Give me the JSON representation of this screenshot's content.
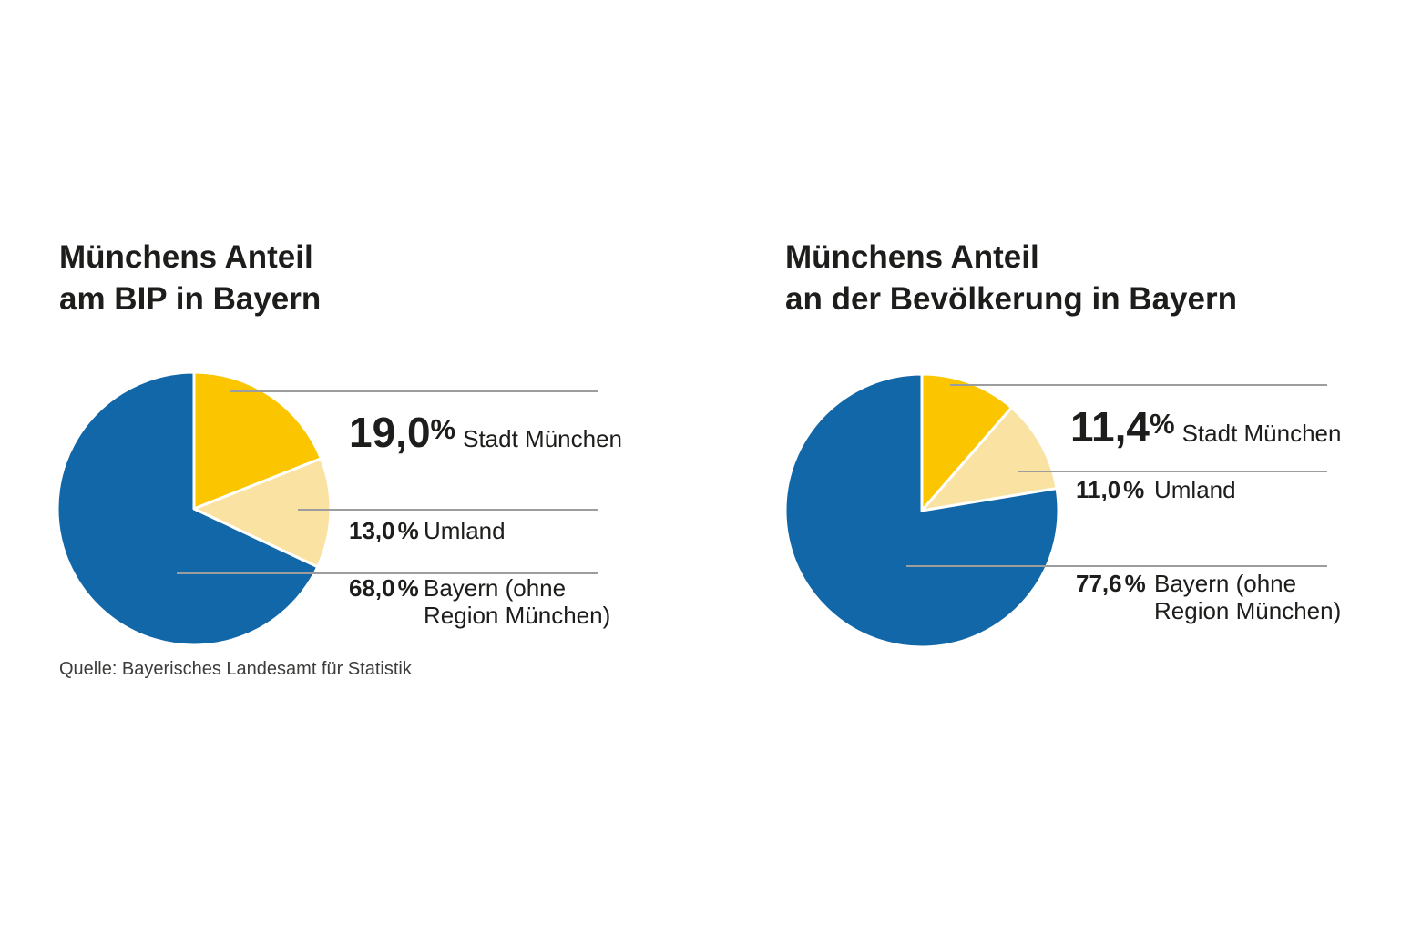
{
  "colors": {
    "stadt_muenchen": "#fbc500",
    "umland": "#fae2a2",
    "bayern": "#1167a8",
    "callout_line": "#9d9d9d",
    "text": "#1d1d1b"
  },
  "source_note": "Quelle: Bayerisches Landesamt für Statistik",
  "chart_data": [
    {
      "type": "pie",
      "title": "Münchens Anteil am BIP in Bayern",
      "title_lines": [
        "Münchens Anteil",
        "am BIP in Bayern"
      ],
      "legend_position": "right",
      "start_angle": "12-oclock-clockwise",
      "slices": [
        {
          "label": "Stadt München",
          "value": 19.0,
          "display": "19,0",
          "unit": "%",
          "color_key": "stadt_muenchen"
        },
        {
          "label": "Umland",
          "value": 13.0,
          "display": "13,0",
          "unit": "%",
          "color_key": "umland"
        },
        {
          "label": "Bayern (ohne Region München)",
          "label_lines": [
            "Bayern (ohne",
            "Region München)"
          ],
          "value": 68.0,
          "display": "68,0",
          "unit": "%",
          "color_key": "bayern"
        }
      ]
    },
    {
      "type": "pie",
      "title": "Münchens Anteil an der Bevölkerung in Bayern",
      "title_lines": [
        "Münchens Anteil",
        "an der Bevölkerung in Bayern"
      ],
      "legend_position": "right",
      "start_angle": "12-oclock-clockwise",
      "slices": [
        {
          "label": "Stadt München",
          "value": 11.4,
          "display": "11,4",
          "unit": "%",
          "color_key": "stadt_muenchen"
        },
        {
          "label": "Umland",
          "value": 11.0,
          "display": "11,0",
          "unit": "%",
          "color_key": "umland"
        },
        {
          "label": "Bayern (ohne Region München)",
          "label_lines": [
            "Bayern (ohne",
            "Region München)"
          ],
          "value": 77.6,
          "display": "77,6",
          "unit": "%",
          "color_key": "bayern"
        }
      ]
    }
  ]
}
